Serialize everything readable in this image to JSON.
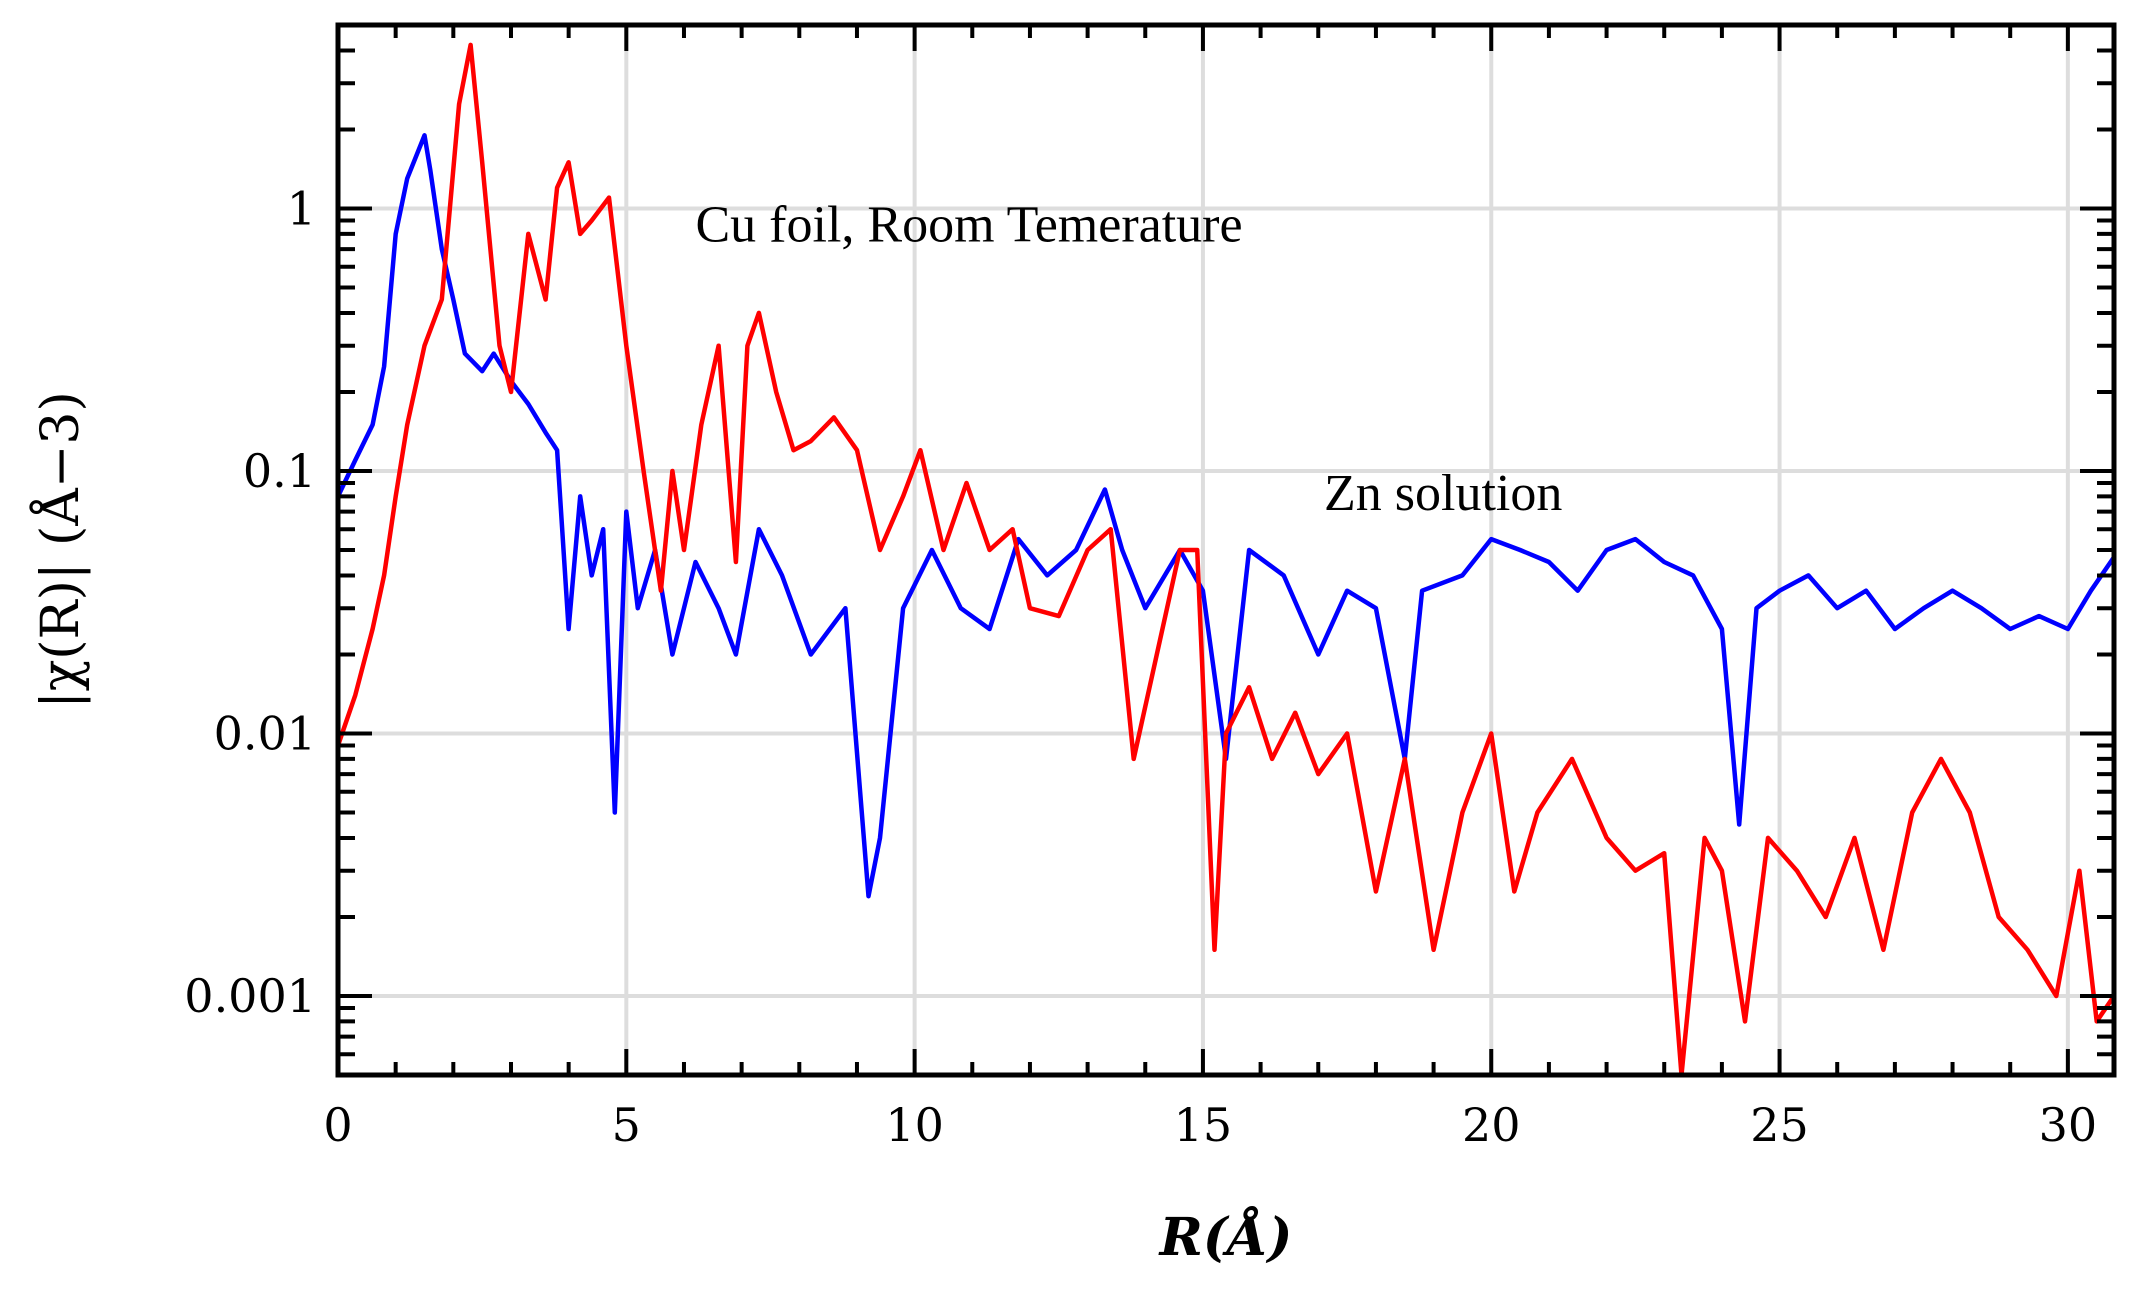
{
  "chart_data": {
    "type": "line",
    "xlabel": "R(Å)",
    "ylabel": "|χ(R)| (Å−3)",
    "xlim": [
      0,
      30.8
    ],
    "ylim": [
      0.0005,
      5
    ],
    "yscale": "log",
    "grid": true,
    "x_ticks": [
      0,
      5,
      10,
      15,
      20,
      25,
      30
    ],
    "x_tick_labels": [
      "0",
      "5",
      "10",
      "15",
      "20",
      "25",
      "30"
    ],
    "y_ticks": [
      0.001,
      0.01,
      0.1,
      1
    ],
    "y_tick_labels": [
      "0.001",
      "0.01",
      "0.1",
      "1"
    ],
    "colors": {
      "blue": "#0000ff",
      "red": "#ff0000"
    },
    "annotations": [
      {
        "text": "Cu foil, Room Temerature",
        "x": 6.2,
        "y": 0.75
      },
      {
        "text": "Zn solution",
        "x": 17.1,
        "y": 0.071
      }
    ],
    "series": [
      {
        "color": "#0000ff",
        "x": [
          0,
          0.3,
          0.6,
          0.8,
          1.0,
          1.2,
          1.5,
          1.6,
          1.8,
          2.0,
          2.2,
          2.5,
          2.7,
          3.0,
          3.3,
          3.6,
          3.8,
          4.0,
          4.2,
          4.4,
          4.6,
          4.8,
          5.0,
          5.2,
          5.5,
          5.8,
          6.2,
          6.6,
          6.9,
          7.3,
          7.7,
          8.2,
          8.8,
          9.2,
          9.4,
          9.8,
          10.3,
          10.8,
          11.3,
          11.8,
          12.3,
          12.8,
          13.3,
          13.6,
          14.0,
          14.6,
          15.0,
          15.4,
          15.8,
          16.4,
          17.0,
          17.5,
          18.0,
          18.5,
          18.8,
          19.5,
          20.0,
          20.5,
          21.0,
          21.5,
          22.0,
          22.5,
          23.0,
          23.5,
          24.0,
          24.3,
          24.6,
          25.0,
          25.5,
          26.0,
          26.5,
          27.0,
          27.5,
          28.0,
          28.5,
          29.0,
          29.5,
          30.0,
          30.4,
          30.8
        ],
        "values": [
          0.08,
          0.11,
          0.15,
          0.25,
          0.8,
          1.3,
          1.9,
          1.4,
          0.7,
          0.45,
          0.28,
          0.24,
          0.28,
          0.22,
          0.18,
          0.14,
          0.12,
          0.025,
          0.08,
          0.04,
          0.06,
          0.005,
          0.07,
          0.03,
          0.05,
          0.02,
          0.045,
          0.03,
          0.02,
          0.06,
          0.04,
          0.02,
          0.03,
          0.0024,
          0.004,
          0.03,
          0.05,
          0.03,
          0.025,
          0.055,
          0.04,
          0.05,
          0.085,
          0.05,
          0.03,
          0.05,
          0.035,
          0.008,
          0.05,
          0.04,
          0.02,
          0.035,
          0.03,
          0.008,
          0.035,
          0.04,
          0.055,
          0.05,
          0.045,
          0.035,
          0.05,
          0.055,
          0.045,
          0.04,
          0.025,
          0.0045,
          0.03,
          0.035,
          0.04,
          0.03,
          0.035,
          0.025,
          0.03,
          0.035,
          0.03,
          0.025,
          0.028,
          0.025,
          0.035,
          0.047
        ]
      },
      {
        "color": "#ff0000",
        "x": [
          0,
          0.3,
          0.6,
          0.8,
          1.0,
          1.2,
          1.5,
          1.8,
          2.1,
          2.3,
          2.5,
          2.8,
          3.0,
          3.3,
          3.6,
          3.8,
          4.0,
          4.2,
          4.4,
          4.7,
          5.0,
          5.3,
          5.6,
          5.8,
          6.0,
          6.3,
          6.6,
          6.9,
          7.1,
          7.3,
          7.6,
          7.9,
          8.2,
          8.6,
          9.0,
          9.4,
          9.8,
          10.1,
          10.5,
          10.9,
          11.3,
          11.7,
          12.0,
          12.5,
          13.0,
          13.4,
          13.8,
          14.2,
          14.6,
          14.9,
          15.2,
          15.4,
          15.8,
          16.2,
          16.6,
          17.0,
          17.5,
          18.0,
          18.5,
          19.0,
          19.5,
          20.0,
          20.4,
          20.8,
          21.4,
          22.0,
          22.5,
          23.0,
          23.3,
          23.7,
          24.0,
          24.4,
          24.8,
          25.3,
          25.8,
          26.3,
          26.8,
          27.3,
          27.8,
          28.3,
          28.8,
          29.3,
          29.8,
          30.2,
          30.5,
          30.8
        ],
        "values": [
          0.009,
          0.014,
          0.025,
          0.04,
          0.08,
          0.15,
          0.3,
          0.45,
          2.5,
          4.2,
          1.5,
          0.3,
          0.2,
          0.8,
          0.45,
          1.2,
          1.5,
          0.8,
          0.9,
          1.1,
          0.3,
          0.1,
          0.035,
          0.1,
          0.05,
          0.15,
          0.3,
          0.045,
          0.3,
          0.4,
          0.2,
          0.12,
          0.13,
          0.16,
          0.12,
          0.05,
          0.08,
          0.12,
          0.05,
          0.09,
          0.05,
          0.06,
          0.03,
          0.028,
          0.05,
          0.06,
          0.008,
          0.02,
          0.05,
          0.05,
          0.0015,
          0.01,
          0.015,
          0.008,
          0.012,
          0.007,
          0.01,
          0.0025,
          0.008,
          0.0015,
          0.005,
          0.01,
          0.0025,
          0.005,
          0.008,
          0.004,
          0.003,
          0.0035,
          0.0005,
          0.004,
          0.003,
          0.0008,
          0.004,
          0.003,
          0.002,
          0.004,
          0.0015,
          0.005,
          0.008,
          0.005,
          0.002,
          0.0015,
          0.001,
          0.003,
          0.0008,
          0.001
        ]
      }
    ]
  }
}
